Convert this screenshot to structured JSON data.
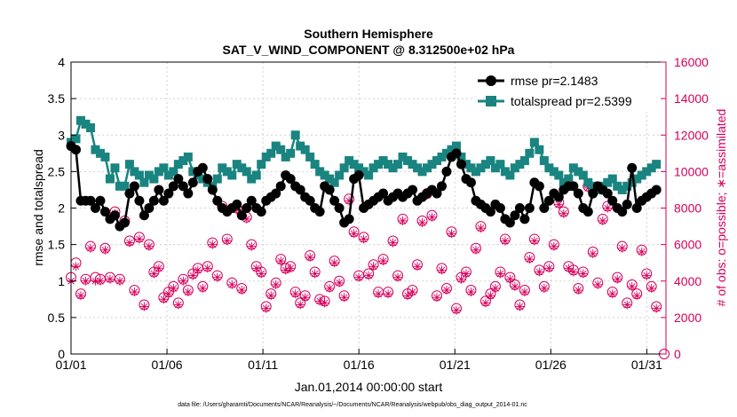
{
  "chart_data": {
    "type": "line",
    "title": "Southern Hemisphere",
    "subtitle": "SAT_V_WIND_COMPONENT @ 8.312500e+02 hPa",
    "xlabel": "Jan.01,2014 00:00:00 start",
    "ylabel": "rmse and totalspread",
    "ylabel_right": "# of obs: o=possible; ∗=assimilated",
    "footnote": "data file: /Users/gharamti/Documents/NCAR/Reanalysis/~/Documents/NCAR/Reanalysis/webpub/obs_diag_output_2014-01.nc",
    "x_ticks": [
      "01/01",
      "01/06",
      "01/11",
      "01/16",
      "01/21",
      "01/26",
      "01/31"
    ],
    "x_tick_days": [
      0,
      5,
      10,
      15,
      20,
      25,
      30
    ],
    "xlim": [
      0,
      31
    ],
    "ylim": [
      0,
      4
    ],
    "y_ticks": [
      "0",
      "0.5",
      "1",
      "1.5",
      "2",
      "2.5",
      "3",
      "3.5",
      "4"
    ],
    "ylim_right": [
      0,
      16000
    ],
    "y_ticks_right": [
      "0",
      "2000",
      "4000",
      "6000",
      "8000",
      "10000",
      "12000",
      "14000",
      "16000"
    ],
    "grid": true,
    "legend_position": "top-right",
    "colors": {
      "rmse": "#000000",
      "totalspread": "#198480",
      "obs": "#d6005c"
    },
    "series": [
      {
        "name": "rmse pr=2.1483",
        "values": [
          2.85,
          2.8,
          2.1,
          2.1,
          2.1,
          2.0,
          2.1,
          1.95,
          1.85,
          1.9,
          1.75,
          1.8,
          2.2,
          2.3,
          2.1,
          1.9,
          2.0,
          2.1,
          2.25,
          2.1,
          2.2,
          2.3,
          2.4,
          2.3,
          2.2,
          2.35,
          2.5,
          2.55,
          2.4,
          2.25,
          2.1,
          2.0,
          1.95,
          2.0,
          2.05,
          1.9,
          2.0,
          2.1,
          2.0,
          1.95,
          2.1,
          2.15,
          2.2,
          2.3,
          2.45,
          2.4,
          2.3,
          2.25,
          2.15,
          2.1,
          2.0,
          1.95,
          2.3,
          2.25,
          2.1,
          2.0,
          1.8,
          1.85,
          2.4,
          2.45,
          2.0,
          2.05,
          2.1,
          2.15,
          2.2,
          2.1,
          2.15,
          2.2,
          2.15,
          2.2,
          2.25,
          2.1,
          2.15,
          2.2,
          2.25,
          2.2,
          2.3,
          2.5,
          2.7,
          2.75,
          2.6,
          2.4,
          2.35,
          2.1,
          2.05,
          2.0,
          1.95,
          2.05,
          2.0,
          1.85,
          1.8,
          1.9,
          2.0,
          1.85,
          2.0,
          2.35,
          2.3,
          2.0,
          2.1,
          2.2,
          2.15,
          2.25,
          2.3,
          2.3,
          2.2,
          2.0,
          1.95,
          2.2,
          2.3,
          2.25,
          2.2,
          2.1,
          2.0,
          1.95,
          2.05,
          2.55,
          2.0,
          2.1,
          2.15,
          2.2,
          2.25
        ]
      },
      {
        "name": "totalspread pr=2.5399",
        "values": [
          2.9,
          2.95,
          3.2,
          3.15,
          3.1,
          2.8,
          2.75,
          2.7,
          2.4,
          2.55,
          2.3,
          2.3,
          2.6,
          2.5,
          2.45,
          2.35,
          2.45,
          2.4,
          2.5,
          2.55,
          2.45,
          2.5,
          2.6,
          2.65,
          2.7,
          2.5,
          2.45,
          2.4,
          2.35,
          2.3,
          2.4,
          2.55,
          2.5,
          2.45,
          2.6,
          2.55,
          2.5,
          2.4,
          2.45,
          2.6,
          2.7,
          2.75,
          2.85,
          2.8,
          2.7,
          2.75,
          3.0,
          2.85,
          2.8,
          2.7,
          2.6,
          2.5,
          2.45,
          2.4,
          2.35,
          2.45,
          2.55,
          2.65,
          2.6,
          2.55,
          2.5,
          2.45,
          2.55,
          2.6,
          2.65,
          2.6,
          2.55,
          2.6,
          2.7,
          2.65,
          2.6,
          2.55,
          2.5,
          2.55,
          2.6,
          2.65,
          2.7,
          2.75,
          2.8,
          2.85,
          2.7,
          2.6,
          2.55,
          2.5,
          2.55,
          2.6,
          2.65,
          2.55,
          2.6,
          2.5,
          2.45,
          2.55,
          2.6,
          2.65,
          2.75,
          2.9,
          2.8,
          2.65,
          2.55,
          2.5,
          2.45,
          2.35,
          2.4,
          2.55,
          2.5,
          2.45,
          2.35,
          2.3,
          2.25,
          2.3,
          2.35,
          2.4,
          2.3,
          2.25,
          2.3,
          2.35,
          2.4,
          2.45,
          2.5,
          2.55,
          2.6
        ]
      },
      {
        "name": "obs possible",
        "values": [
          4200,
          5000,
          3300,
          4100,
          5900,
          4200,
          4100,
          5800,
          4200,
          7800,
          4100,
          7300,
          6200,
          3500,
          6400,
          2700,
          6000,
          4500,
          4800,
          3100,
          3400,
          3700,
          2800,
          4100,
          3500,
          4400,
          4700,
          3700,
          4800,
          6100,
          4300,
          8100,
          6300,
          3900,
          8000,
          3600,
          7500,
          6000,
          4800,
          4500,
          2600,
          3300,
          3900,
          5200,
          4700,
          4800,
          3400,
          2800,
          3200,
          5400,
          4500,
          3000,
          2900,
          3700,
          5100,
          4000,
          3200,
          8500,
          6700,
          4300,
          6400,
          4400,
          4900,
          3400,
          5200,
          3400,
          6200,
          4300,
          7400,
          3300,
          3500,
          4900,
          7300,
          8800,
          7600,
          3200,
          4700,
          3600,
          6700,
          2500,
          4200,
          4500,
          3500,
          5800,
          7000,
          2900,
          3300,
          3700,
          4500,
          6300,
          4200,
          3800,
          2700,
          3500,
          5300,
          6300,
          4600,
          3700,
          4800,
          6000,
          8300,
          7800,
          4800,
          4600,
          3600,
          4500,
          9200,
          5600,
          3900,
          7400,
          8100,
          3400,
          4200,
          5900,
          2800,
          3800,
          3300,
          5700,
          4400,
          3700,
          2600
        ]
      },
      {
        "name": "obs assimilated",
        "values": [
          4000,
          4800,
          3200,
          4000,
          5800,
          4000,
          4000,
          5700,
          4100,
          7700,
          4000,
          7200,
          6100,
          3400,
          6300,
          2600,
          5900,
          4400,
          4700,
          3000,
          3300,
          3600,
          2700,
          4000,
          3400,
          4300,
          4600,
          3600,
          4700,
          6000,
          4200,
          8000,
          6200,
          3800,
          7900,
          3500,
          7400,
          5900,
          4700,
          4400,
          2500,
          3200,
          3800,
          5100,
          4600,
          4700,
          3300,
          2700,
          3100,
          5300,
          4400,
          2900,
          2800,
          3600,
          5000,
          3900,
          3100,
          8400,
          6600,
          4200,
          6300,
          4300,
          4800,
          3300,
          5100,
          3300,
          6100,
          4200,
          7300,
          3200,
          3400,
          4800,
          7200,
          8700,
          7500,
          3100,
          4600,
          3500,
          6600,
          2400,
          4100,
          4400,
          3400,
          5700,
          6900,
          2800,
          3200,
          3600,
          4400,
          6200,
          4100,
          3700,
          2600,
          3400,
          5200,
          6200,
          4500,
          3600,
          4700,
          5900,
          8200,
          7700,
          4700,
          4500,
          3500,
          4400,
          9100,
          5500,
          3800,
          7300,
          8000,
          3300,
          4100,
          5800,
          2700,
          3700,
          3200,
          5600,
          4300,
          3600,
          2500
        ]
      }
    ],
    "last_obs_marker_value": 0
  }
}
